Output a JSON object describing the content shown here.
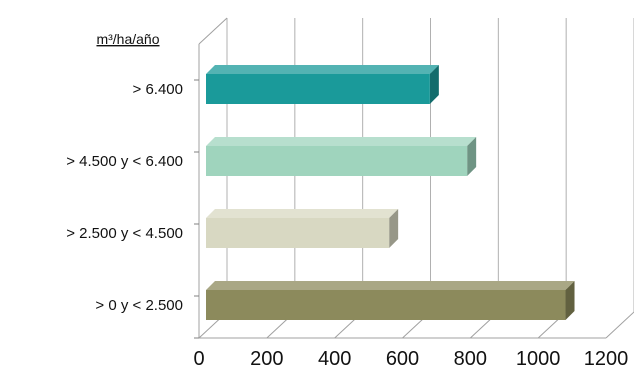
{
  "chart_data": {
    "type": "bar",
    "orientation": "horizontal",
    "style": "3d",
    "header_label": "m³/ha/año",
    "categories": [
      "> 6.400",
      "> 4.500 y <  6.400",
      "> 2.500 y < 4.500",
      "> 0 y <  2.500"
    ],
    "values": [
      660,
      770,
      540,
      1060
    ],
    "colors": [
      "#1a9a9a",
      "#9fd4bd",
      "#d8d8c2",
      "#8c8a5c"
    ],
    "xlim": [
      0,
      1200
    ],
    "xticks": [
      "0",
      "200",
      "400",
      "600",
      "800",
      "1000",
      "1200"
    ],
    "grid": true,
    "legend": "none"
  }
}
